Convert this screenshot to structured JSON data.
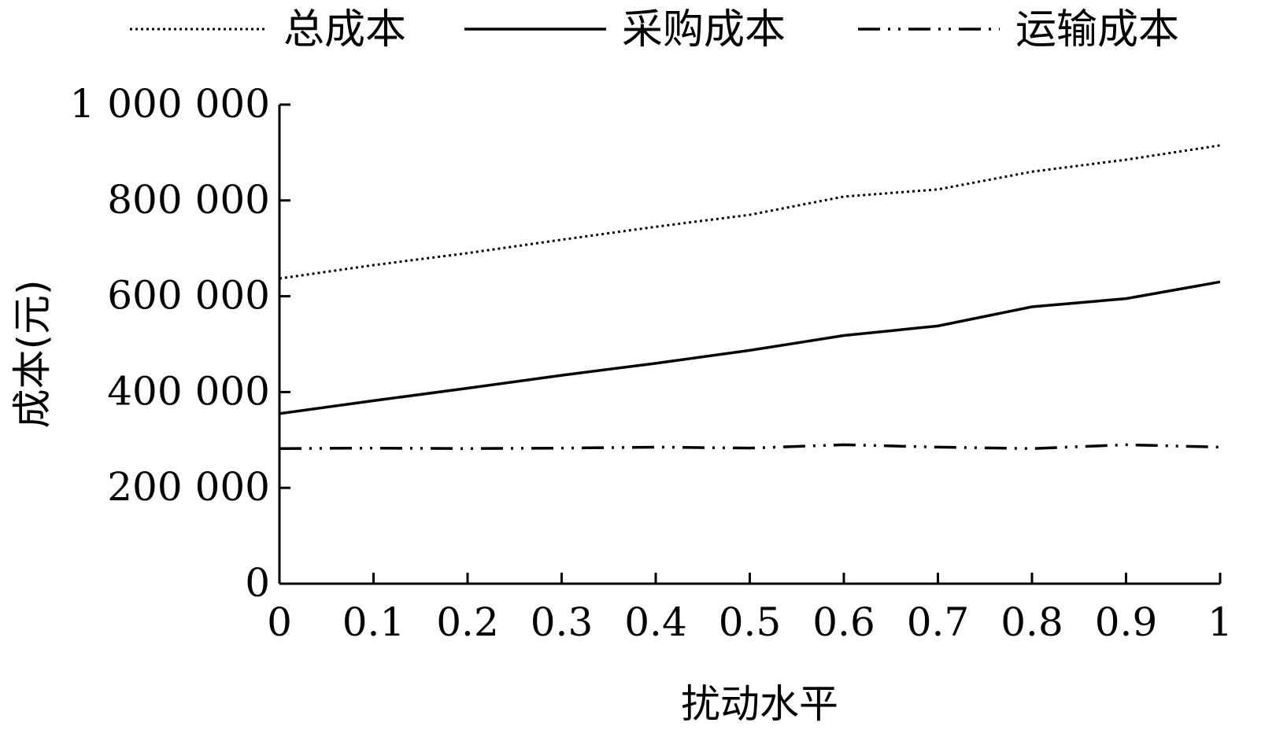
{
  "chart_data": {
    "type": "line",
    "xlabel": "扰动水平",
    "ylabel": "成本(元)",
    "xlim": [
      0,
      1
    ],
    "ylim": [
      0,
      1000000
    ],
    "x_ticks": [
      "0",
      "0.1",
      "0.2",
      "0.3",
      "0.4",
      "0.5",
      "0.6",
      "0.7",
      "0.8",
      "0.9",
      "1"
    ],
    "y_ticks": [
      "0",
      "200 000",
      "400 000",
      "600 000",
      "800 000",
      "1 000 000"
    ],
    "legend_position": "top",
    "grid": false,
    "x": [
      0,
      0.1,
      0.2,
      0.3,
      0.4,
      0.5,
      0.6,
      0.7,
      0.8,
      0.9,
      1
    ],
    "series": [
      {
        "name": "总成本",
        "line_style": "dotted",
        "values": [
          637000,
          665000,
          690000,
          718000,
          745000,
          770000,
          808000,
          823000,
          860000,
          885000,
          915000
        ]
      },
      {
        "name": "采购成本",
        "line_style": "solid",
        "values": [
          355000,
          382000,
          408000,
          435000,
          460000,
          487000,
          518000,
          538000,
          578000,
          595000,
          630000
        ]
      },
      {
        "name": "运输成本",
        "line_style": "dash-dot-dot",
        "values": [
          282000,
          283000,
          282000,
          283000,
          285000,
          283000,
          290000,
          285000,
          282000,
          290000,
          285000
        ]
      }
    ]
  }
}
